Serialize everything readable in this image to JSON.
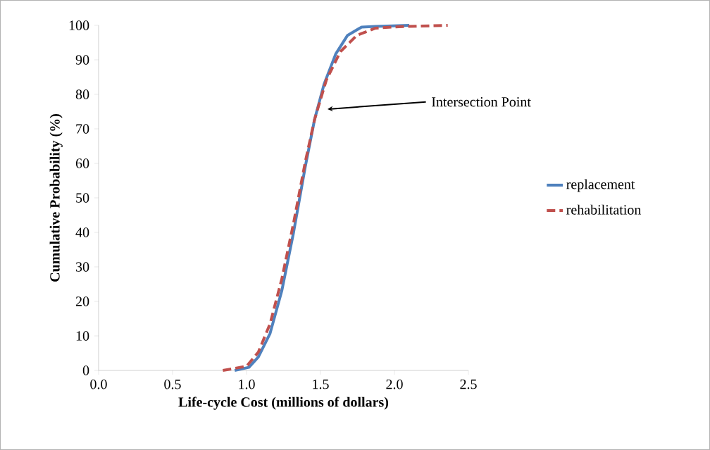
{
  "chart_data": {
    "type": "line",
    "xlabel": "Life-cycle Cost (millions of dollars)",
    "ylabel": "Cumulative Probability (%)",
    "xlim": [
      0,
      2.5
    ],
    "xticks": [
      {
        "value": 0,
        "label": "0.0"
      },
      {
        "value": 0.5,
        "label": "0.5"
      },
      {
        "value": 1,
        "label": "1.0"
      },
      {
        "value": 1.5,
        "label": "1.5"
      },
      {
        "value": 2,
        "label": "2.0"
      },
      {
        "value": 2.5,
        "label": "2.5"
      }
    ],
    "ylim": [
      0,
      100
    ],
    "yticks": [
      0,
      10,
      20,
      30,
      40,
      50,
      60,
      70,
      80,
      90,
      100
    ],
    "grid": false,
    "legend": "right",
    "marker": "none",
    "annotations": [
      "Intersection Point"
    ],
    "series": [
      {
        "name": "replacement",
        "color": "#4f81bd",
        "line_style": "solid",
        "x": [
          0.92,
          1.016,
          1.08,
          1.159,
          1.238,
          1.318,
          1.397,
          1.46,
          1.524,
          1.603,
          1.683,
          1.778,
          1.873,
          2.1
        ],
        "values": [
          0,
          0.9,
          3.9,
          10.7,
          23,
          40,
          59,
          72.7,
          82.9,
          91.7,
          97.1,
          99.5,
          99.7,
          100
        ]
      },
      {
        "name": "rehabilitation",
        "color": "#c0504d",
        "line_style": "dashed",
        "x": [
          0.84,
          1.0,
          1.08,
          1.159,
          1.238,
          1.318,
          1.397,
          1.46,
          1.54,
          1.635,
          1.746,
          1.873,
          2.03,
          2.36
        ],
        "values": [
          0,
          1.2,
          5.3,
          13.5,
          26.4,
          42.7,
          60.4,
          72.7,
          84.2,
          92.4,
          97.1,
          99.2,
          99.6,
          100
        ]
      }
    ]
  }
}
